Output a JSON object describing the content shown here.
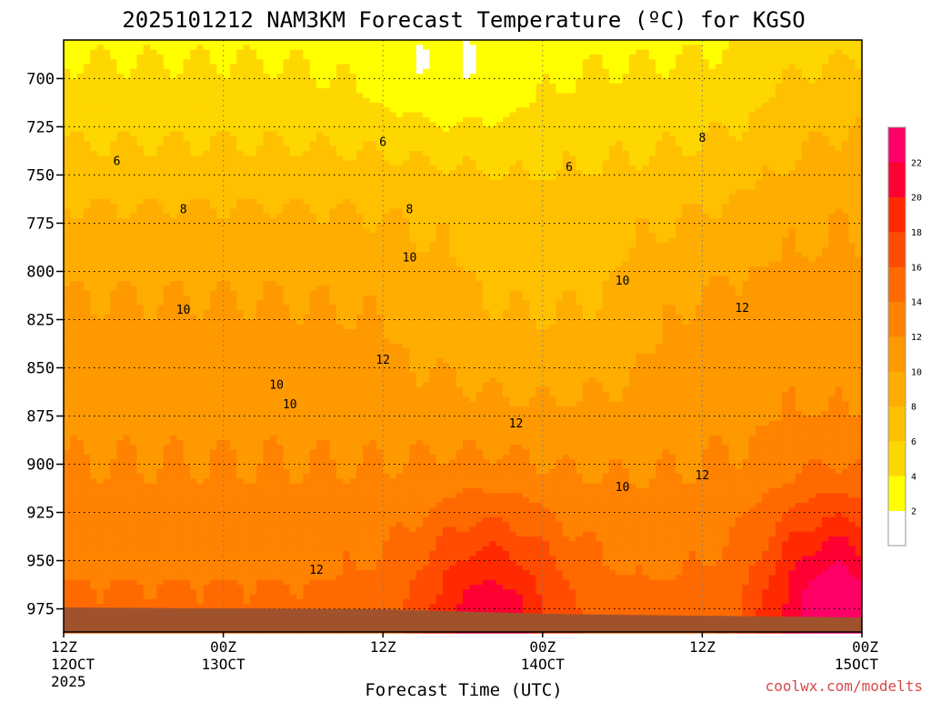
{
  "chart_data": {
    "type": "heatmap",
    "title": "2025101212 NAM3KM Forecast Temperature (ºC) for KGSO",
    "xlabel": "Forecast Time (UTC)",
    "ylabel": "",
    "credit": "coolwx.com/modelts",
    "y_axis": {
      "unit": "hPa",
      "inverted": true,
      "range": [
        680,
        987
      ],
      "ticks": [
        700,
        725,
        750,
        775,
        800,
        825,
        850,
        875,
        900,
        925,
        950,
        975
      ]
    },
    "x_axis": {
      "range_hours": [
        0,
        60
      ],
      "ticks": [
        {
          "hour": 0,
          "line1": "12Z",
          "line2": "12OCT",
          "line3": "2025"
        },
        {
          "hour": 12,
          "line1": "00Z",
          "line2": "13OCT",
          "line3": ""
        },
        {
          "hour": 24,
          "line1": "12Z",
          "line2": "",
          "line3": ""
        },
        {
          "hour": 36,
          "line1": "00Z",
          "line2": "14OCT",
          "line3": ""
        },
        {
          "hour": 48,
          "line1": "12Z",
          "line2": "",
          "line3": ""
        },
        {
          "hour": 60,
          "line1": "00Z",
          "line2": "15OCT",
          "line3": ""
        }
      ]
    },
    "grid": true,
    "legend": "colorbar-right",
    "colorbar": {
      "levels": [
        0,
        2,
        4,
        6,
        8,
        10,
        12,
        14,
        16,
        18,
        20,
        22,
        24
      ],
      "labels": [
        "2",
        "4",
        "6",
        "8",
        "10",
        "12",
        "14",
        "16",
        "18",
        "20",
        "22"
      ],
      "colors": [
        "#ffffff",
        "#ffff00",
        "#ffd700",
        "#ffc000",
        "#ffad00",
        "#ff9900",
        "#ff8200",
        "#ff6a00",
        "#ff4c00",
        "#ff2a00",
        "#ff0033",
        "#ff0066"
      ]
    },
    "contour_labels": [
      {
        "text": "6",
        "hour": 4,
        "hpa": 743
      },
      {
        "text": "6",
        "hour": 24,
        "hpa": 733
      },
      {
        "text": "6",
        "hour": 38,
        "hpa": 746
      },
      {
        "text": "8",
        "hour": 9,
        "hpa": 768
      },
      {
        "text": "8",
        "hour": 26,
        "hpa": 768
      },
      {
        "text": "8",
        "hour": 48,
        "hpa": 731
      },
      {
        "text": "10",
        "hour": 9,
        "hpa": 820
      },
      {
        "text": "10",
        "hour": 26,
        "hpa": 793
      },
      {
        "text": "10",
        "hour": 16,
        "hpa": 859
      },
      {
        "text": "10",
        "hour": 17,
        "hpa": 869
      },
      {
        "text": "10",
        "hour": 42,
        "hpa": 805
      },
      {
        "text": "10",
        "hour": 42,
        "hpa": 912
      },
      {
        "text": "12",
        "hour": 24,
        "hpa": 846
      },
      {
        "text": "12",
        "hour": 34,
        "hpa": 879
      },
      {
        "text": "12",
        "hour": 51,
        "hpa": 819
      },
      {
        "text": "12",
        "hour": 48,
        "hpa": 906
      },
      {
        "text": "12",
        "hour": 19,
        "hpa": 955
      }
    ]
  }
}
